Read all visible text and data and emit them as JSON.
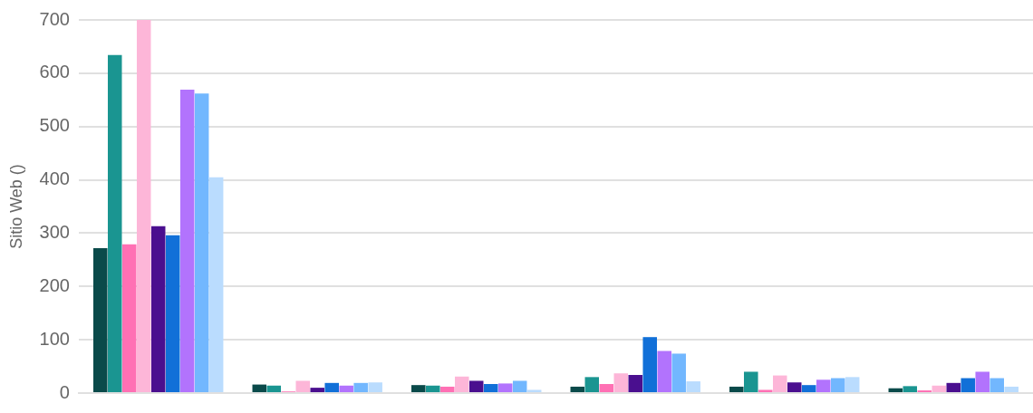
{
  "chart_data": {
    "type": "bar",
    "ylabel": "Sitio Web ()",
    "categories": [
      null,
      null,
      null,
      null,
      null,
      null
    ],
    "series": [
      {
        "color": "#0a4a4a",
        "values": [
          272,
          16,
          15,
          12,
          12,
          9
        ]
      },
      {
        "color": "#1a9591",
        "values": [
          634,
          14,
          14,
          30,
          40,
          13
        ]
      },
      {
        "color": "#ff70b4",
        "values": [
          279,
          3,
          12,
          17,
          6,
          5
        ]
      },
      {
        "color": "#fdb6d8",
        "values": [
          700,
          23,
          31,
          37,
          33,
          14
        ]
      },
      {
        "color": "#4a0f8f",
        "values": [
          313,
          10,
          23,
          34,
          20,
          19
        ]
      },
      {
        "color": "#1170d8",
        "values": [
          296,
          19,
          17,
          105,
          15,
          28
        ]
      },
      {
        "color": "#b273fd",
        "values": [
          569,
          14,
          18,
          79,
          25,
          40
        ]
      },
      {
        "color": "#72b7fe",
        "values": [
          562,
          19,
          23,
          74,
          28,
          28
        ]
      },
      {
        "color": "#badcfe",
        "values": [
          405,
          20,
          6,
          22,
          30,
          12
        ]
      }
    ],
    "ylim": [
      0,
      700
    ],
    "yticks": [
      0,
      100,
      200,
      300,
      400,
      500,
      600,
      700
    ],
    "grid": "y",
    "legend": false
  }
}
